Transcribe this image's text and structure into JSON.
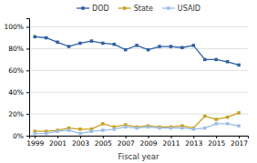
{
  "chart_data": {
    "type": "line",
    "x": [
      1999,
      2000,
      2001,
      2002,
      2003,
      2004,
      2005,
      2006,
      2007,
      2008,
      2009,
      2010,
      2011,
      2012,
      2013,
      2014,
      2015,
      2016,
      2017
    ],
    "series": [
      {
        "name": "DOD",
        "color": "#2e5fa3",
        "values": [
          0.91,
          0.9,
          0.86,
          0.82,
          0.85,
          0.87,
          0.85,
          0.84,
          0.79,
          0.83,
          0.79,
          0.82,
          0.82,
          0.81,
          0.83,
          0.7,
          0.7,
          0.68,
          0.65
        ]
      },
      {
        "name": "State",
        "color": "#c8a020",
        "values": [
          0.04,
          0.04,
          0.05,
          0.07,
          0.06,
          0.06,
          0.11,
          0.08,
          0.1,
          0.08,
          0.09,
          0.08,
          0.08,
          0.09,
          0.07,
          0.18,
          0.15,
          0.17,
          0.21
        ]
      },
      {
        "name": "USAID",
        "color": "#9dbde8",
        "values": [
          0.02,
          0.02,
          0.04,
          0.05,
          0.02,
          0.04,
          0.05,
          0.06,
          0.08,
          0.07,
          0.08,
          0.07,
          0.07,
          0.07,
          0.06,
          0.07,
          0.11,
          0.11,
          0.09
        ]
      }
    ],
    "marker": "square",
    "xlabel": "Fiscal year",
    "xlim": [
      1998.5,
      2017.8
    ],
    "xticks": [
      1999,
      2001,
      2003,
      2005,
      2007,
      2009,
      2011,
      2013,
      2015,
      2017
    ],
    "ylim": [
      0.0,
      1.08
    ],
    "yticks": [
      {
        "value": 0.0,
        "label": "0%"
      },
      {
        "value": 0.2,
        "label": "20%"
      },
      {
        "value": 0.4,
        "label": "40%"
      },
      {
        "value": 0.6,
        "label": "60%"
      },
      {
        "value": 0.8,
        "label": "80%"
      },
      {
        "value": 1.0,
        "label": "100%"
      }
    ],
    "grid": true,
    "legend": "top"
  }
}
